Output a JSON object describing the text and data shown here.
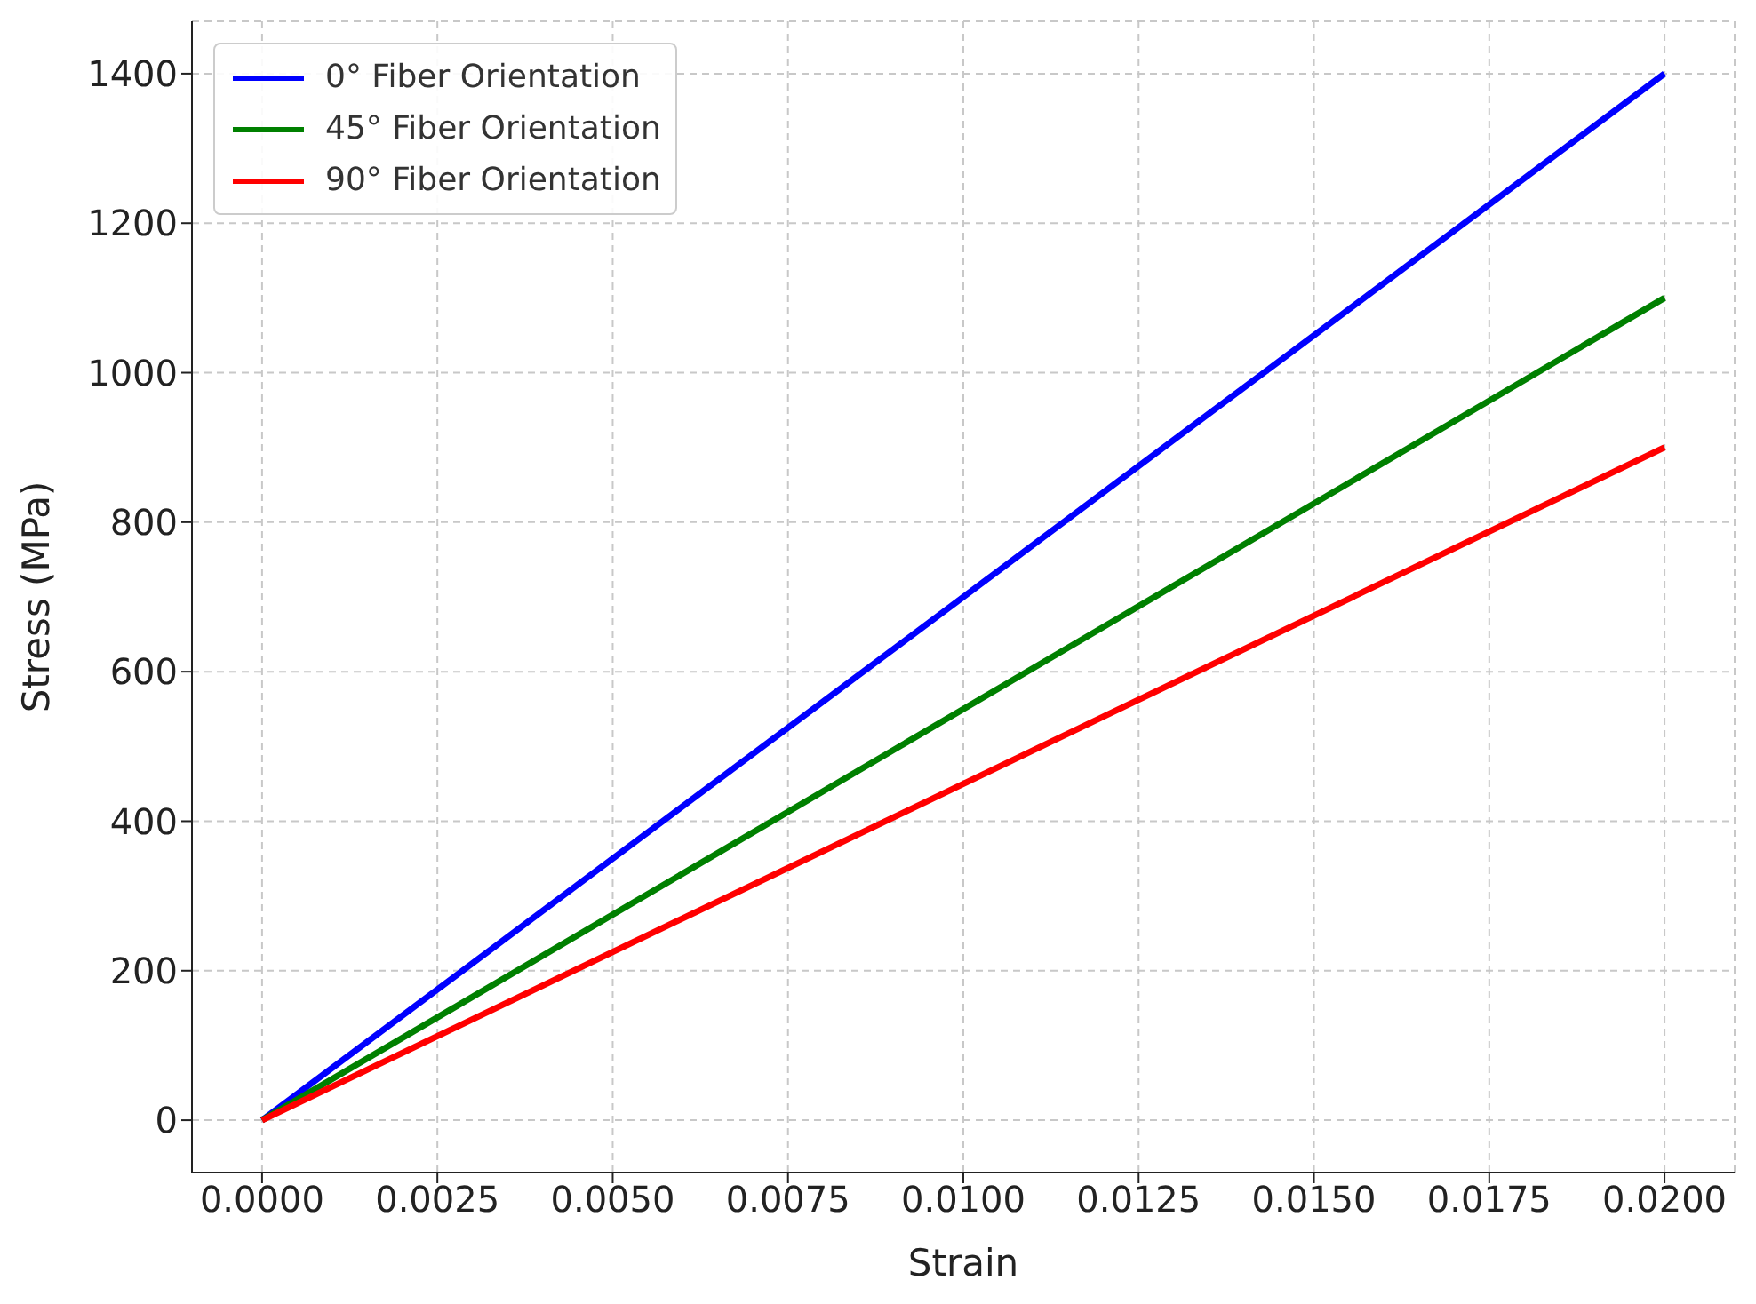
{
  "chart_data": {
    "type": "line",
    "xlabel": "Strain",
    "ylabel": "Stress (MPa)",
    "x": [
      0,
      0.02
    ],
    "series": [
      {
        "name": "0° Fiber Orientation",
        "color": "#0000ff",
        "values": [
          0,
          1400
        ]
      },
      {
        "name": "45° Fiber Orientation",
        "color": "#008000",
        "values": [
          0,
          1100
        ]
      },
      {
        "name": "90° Fiber Orientation",
        "color": "#ff0000",
        "values": [
          0,
          900
        ]
      }
    ],
    "xlim": [
      -0.001,
      0.021
    ],
    "xticks": [
      {
        "value": 0,
        "label": "0.0000"
      },
      {
        "value": 0.0025,
        "label": "0.0025"
      },
      {
        "value": 0.005,
        "label": "0.0050"
      },
      {
        "value": 0.0075,
        "label": "0.0075"
      },
      {
        "value": 0.01,
        "label": "0.0100"
      },
      {
        "value": 0.0125,
        "label": "0.0125"
      },
      {
        "value": 0.015,
        "label": "0.0150"
      },
      {
        "value": 0.0175,
        "label": "0.0175"
      },
      {
        "value": 0.02,
        "label": "0.0200"
      }
    ],
    "ylim": [
      -70,
      1470
    ],
    "yticks": [
      0,
      200,
      400,
      600,
      800,
      1000,
      1200,
      1400
    ],
    "grid": true,
    "legend": "top left",
    "marker": "none",
    "line_style": "solid"
  }
}
